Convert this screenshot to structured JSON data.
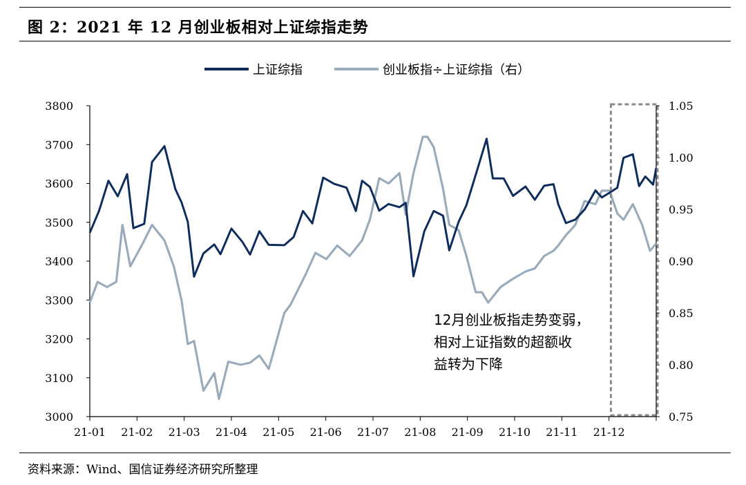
{
  "figure_title": "图 2：2021 年 12 月创业板相对上证综指走势",
  "source": "资料来源：Wind、国信证券经济研究所整理",
  "colors": {
    "index": "#0f2d5c",
    "ratio": "#9aabbc",
    "box": "#8a8a8a",
    "axis": "#000000"
  },
  "chart_data": {
    "type": "line",
    "title": "",
    "x_ticks": [
      "21-01",
      "21-02",
      "21-03",
      "21-04",
      "21-05",
      "21-06",
      "21-07",
      "21-08",
      "21-09",
      "21-10",
      "21-11",
      "21-12"
    ],
    "y_left": {
      "lim": [
        3000,
        3800
      ],
      "ticks": [
        3000,
        3100,
        3200,
        3300,
        3400,
        3500,
        3600,
        3700,
        3800
      ]
    },
    "y_right": {
      "lim": [
        0.75,
        1.05
      ],
      "ticks": [
        "0.75",
        "0.80",
        "0.85",
        "0.90",
        "0.95",
        "1.00",
        "1.05"
      ]
    },
    "legend": {
      "position": "top-center"
    },
    "series": [
      {
        "name": "上证综指",
        "axis": "left",
        "color": "#0f2d5c",
        "points": [
          [
            "2021-01-01",
            3473
          ],
          [
            "2021-01-07",
            3530
          ],
          [
            "2021-01-13",
            3607
          ],
          [
            "2021-01-19",
            3567
          ],
          [
            "2021-01-25",
            3624
          ],
          [
            "2021-01-29",
            3485
          ],
          [
            "2021-02-05",
            3496
          ],
          [
            "2021-02-10",
            3655
          ],
          [
            "2021-02-18",
            3696
          ],
          [
            "2021-02-25",
            3585
          ],
          [
            "2021-03-01",
            3551
          ],
          [
            "2021-03-05",
            3501
          ],
          [
            "2021-03-09",
            3360
          ],
          [
            "2021-03-15",
            3420
          ],
          [
            "2021-03-22",
            3443
          ],
          [
            "2021-03-26",
            3418
          ],
          [
            "2021-04-02",
            3484
          ],
          [
            "2021-04-09",
            3450
          ],
          [
            "2021-04-14",
            3417
          ],
          [
            "2021-04-20",
            3477
          ],
          [
            "2021-04-26",
            3442
          ],
          [
            "2021-05-06",
            3441
          ],
          [
            "2021-05-12",
            3462
          ],
          [
            "2021-05-18",
            3529
          ],
          [
            "2021-05-24",
            3497
          ],
          [
            "2021-05-31",
            3615
          ],
          [
            "2021-06-07",
            3599
          ],
          [
            "2021-06-15",
            3589
          ],
          [
            "2021-06-21",
            3529
          ],
          [
            "2021-06-25",
            3607
          ],
          [
            "2021-06-30",
            3591
          ],
          [
            "2021-07-06",
            3530
          ],
          [
            "2021-07-12",
            3547
          ],
          [
            "2021-07-19",
            3539
          ],
          [
            "2021-07-23",
            3550
          ],
          [
            "2021-07-28",
            3361
          ],
          [
            "2021-08-04",
            3477
          ],
          [
            "2021-08-10",
            3529
          ],
          [
            "2021-08-16",
            3517
          ],
          [
            "2021-08-20",
            3428
          ],
          [
            "2021-08-26",
            3501
          ],
          [
            "2021-08-31",
            3544
          ],
          [
            "2021-09-06",
            3622
          ],
          [
            "2021-09-13",
            3715
          ],
          [
            "2021-09-17",
            3613
          ],
          [
            "2021-09-24",
            3613
          ],
          [
            "2021-09-30",
            3568
          ],
          [
            "2021-10-08",
            3592
          ],
          [
            "2021-10-14",
            3558
          ],
          [
            "2021-10-20",
            3594
          ],
          [
            "2021-10-26",
            3598
          ],
          [
            "2021-10-29",
            3547
          ],
          [
            "2021-11-03",
            3498
          ],
          [
            "2021-11-09",
            3507
          ],
          [
            "2021-11-15",
            3533
          ],
          [
            "2021-11-22",
            3582
          ],
          [
            "2021-11-26",
            3564
          ],
          [
            "2021-12-01",
            3576
          ],
          [
            "2021-12-06",
            3589
          ],
          [
            "2021-12-10",
            3666
          ],
          [
            "2021-12-16",
            3675
          ],
          [
            "2021-12-20",
            3593
          ],
          [
            "2021-12-24",
            3618
          ],
          [
            "2021-12-29",
            3597
          ],
          [
            "2021-12-31",
            3640
          ]
        ]
      },
      {
        "name": "创业板指÷上证综指（右）",
        "axis": "right",
        "color": "#9aabbc",
        "points": [
          [
            "2021-01-01",
            0.86
          ],
          [
            "2021-01-06",
            0.88
          ],
          [
            "2021-01-12",
            0.875
          ],
          [
            "2021-01-18",
            0.88
          ],
          [
            "2021-01-22",
            0.935
          ],
          [
            "2021-01-27",
            0.895
          ],
          [
            "2021-02-04",
            0.917
          ],
          [
            "2021-02-10",
            0.935
          ],
          [
            "2021-02-18",
            0.92
          ],
          [
            "2021-02-24",
            0.895
          ],
          [
            "2021-03-01",
            0.862
          ],
          [
            "2021-03-05",
            0.82
          ],
          [
            "2021-03-09",
            0.823
          ],
          [
            "2021-03-15",
            0.775
          ],
          [
            "2021-03-22",
            0.792
          ],
          [
            "2021-03-25",
            0.767
          ],
          [
            "2021-03-31",
            0.803
          ],
          [
            "2021-04-08",
            0.8
          ],
          [
            "2021-04-14",
            0.802
          ],
          [
            "2021-04-20",
            0.809
          ],
          [
            "2021-04-26",
            0.796
          ],
          [
            "2021-05-06",
            0.85
          ],
          [
            "2021-05-10",
            0.858
          ],
          [
            "2021-05-14",
            0.87
          ],
          [
            "2021-05-20",
            0.888
          ],
          [
            "2021-05-26",
            0.908
          ],
          [
            "2021-06-02",
            0.902
          ],
          [
            "2021-06-09",
            0.915
          ],
          [
            "2021-06-17",
            0.905
          ],
          [
            "2021-06-25",
            0.92
          ],
          [
            "2021-06-30",
            0.94
          ],
          [
            "2021-07-06",
            0.98
          ],
          [
            "2021-07-12",
            0.975
          ],
          [
            "2021-07-19",
            0.985
          ],
          [
            "2021-07-23",
            0.945
          ],
          [
            "2021-07-28",
            0.985
          ],
          [
            "2021-08-03",
            1.02
          ],
          [
            "2021-08-06",
            1.02
          ],
          [
            "2021-08-10",
            1.01
          ],
          [
            "2021-08-16",
            0.97
          ],
          [
            "2021-08-20",
            0.935
          ],
          [
            "2021-08-26",
            0.93
          ],
          [
            "2021-08-31",
            0.905
          ],
          [
            "2021-09-06",
            0.87
          ],
          [
            "2021-09-10",
            0.87
          ],
          [
            "2021-09-14",
            0.86
          ],
          [
            "2021-09-22",
            0.875
          ],
          [
            "2021-09-30",
            0.883
          ],
          [
            "2021-10-08",
            0.89
          ],
          [
            "2021-10-14",
            0.893
          ],
          [
            "2021-10-20",
            0.905
          ],
          [
            "2021-10-26",
            0.91
          ],
          [
            "2021-10-29",
            0.915
          ],
          [
            "2021-11-03",
            0.925
          ],
          [
            "2021-11-09",
            0.935
          ],
          [
            "2021-11-15",
            0.958
          ],
          [
            "2021-11-22",
            0.955
          ],
          [
            "2021-11-26",
            0.968
          ],
          [
            "2021-12-01",
            0.968
          ],
          [
            "2021-12-06",
            0.946
          ],
          [
            "2021-12-10",
            0.94
          ],
          [
            "2021-12-16",
            0.955
          ],
          [
            "2021-12-22",
            0.935
          ],
          [
            "2021-12-27",
            0.91
          ],
          [
            "2021-12-31",
            0.917
          ]
        ]
      }
    ],
    "annotation": {
      "lines": [
        "12月创业板指走势变弱，",
        "相对上证指数的超额收",
        "益转为下降"
      ],
      "box_period": [
        "2021-12-01",
        "2021-12-31"
      ]
    }
  }
}
